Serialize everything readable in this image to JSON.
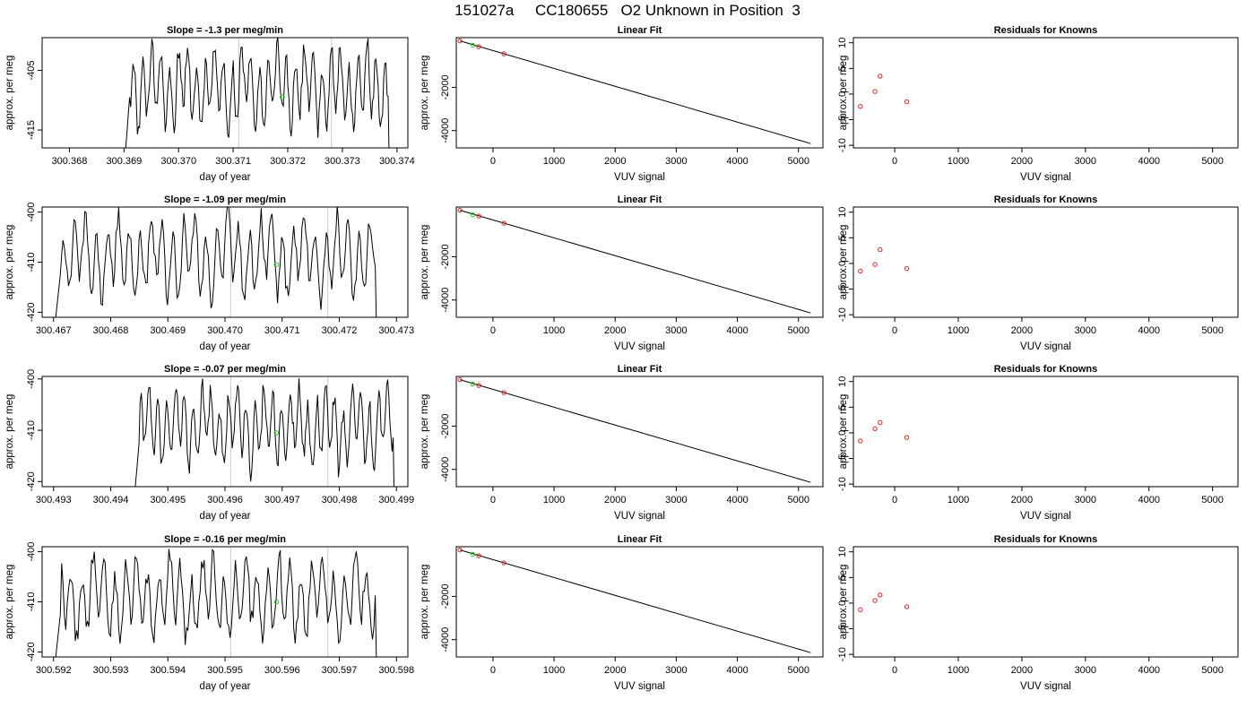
{
  "page_title": "151027a     CC180655   O2 Unknown in Position  3",
  "colors": {
    "trace": "#000000",
    "fit_line": "#000000",
    "knowns": "#dd2222",
    "unknown": "#22cc22",
    "marker_line": "#c8c8c8"
  },
  "chart_data": [
    {
      "row": 1,
      "type": "line",
      "title": "Slope =  -1.3  per meg/min",
      "xlabel": "day of year",
      "ylabel": "approx. per meg",
      "xlim": [
        300.3675,
        300.3742
      ],
      "ylim": [
        -418,
        -399.5
      ],
      "xticks": [
        "300.368",
        "300.369",
        "300.370",
        "300.371",
        "300.372",
        "300.373",
        "300.374"
      ],
      "yticks": [
        -405,
        -415
      ],
      "vlines": [
        300.3711,
        300.3728
      ],
      "trace_start": 300.369,
      "trace_end": 300.3739,
      "unknown_point": {
        "x": 300.3719,
        "y": -409.5
      },
      "fit": {
        "title": "Linear Fit",
        "xlabel": "VUV signal",
        "ylabel": "approx. per meg",
        "xlim": [
          -600,
          5400
        ],
        "ylim": [
          -4800,
          300
        ],
        "xticks": [
          0,
          1000,
          2000,
          3000,
          4000,
          5000
        ],
        "yticks": [
          -2000,
          -4000
        ],
        "line": [
          [
            -540,
            150
          ],
          [
            5200,
            -4600
          ]
        ],
        "knowns": [
          [
            -540,
            150
          ],
          [
            -230,
            -120
          ],
          [
            180,
            -450
          ]
        ],
        "unknown": [
          [
            -330,
            -50
          ]
        ]
      },
      "residuals": {
        "title": "Residuals for Knowns",
        "xlabel": "VUV signal",
        "xlim": [
          -650,
          5400
        ],
        "ylim": [
          -10.5,
          11
        ],
        "xticks": [
          0,
          1000,
          2000,
          3000,
          4000,
          5000
        ],
        "yticks": [
          10,
          5,
          0,
          -5,
          -10
        ],
        "points": [
          [
            -540,
            -2.4
          ],
          [
            -310,
            0.5
          ],
          [
            -230,
            3.5
          ],
          [
            190,
            -1.5
          ]
        ]
      }
    },
    {
      "row": 2,
      "type": "line",
      "title": "Slope =  -1.09  per meg/min",
      "xlabel": "day of year",
      "ylabel": "approx. per meg",
      "xlim": [
        300.4668,
        300.4732
      ],
      "ylim": [
        -421,
        -399
      ],
      "xticks": [
        "300.467",
        "300.468",
        "300.469",
        "300.470",
        "300.471",
        "300.472",
        "300.473"
      ],
      "yticks": [
        -400,
        -410,
        -420
      ],
      "vlines": [
        300.4701,
        300.4718
      ],
      "trace_start": 300.467,
      "trace_end": 300.4727,
      "unknown_point": {
        "x": 300.4709,
        "y": -410.5
      },
      "fit": {
        "title": "Linear Fit",
        "xlabel": "VUV signal",
        "ylabel": "approx. per meg",
        "xlim": [
          -600,
          5400
        ],
        "ylim": [
          -4800,
          300
        ],
        "xticks": [
          0,
          1000,
          2000,
          3000,
          4000,
          5000
        ],
        "yticks": [
          -2000,
          -4000
        ],
        "line": [
          [
            -540,
            150
          ],
          [
            5200,
            -4600
          ]
        ],
        "knowns": [
          [
            -540,
            150
          ],
          [
            -230,
            -120
          ],
          [
            180,
            -450
          ]
        ],
        "unknown": [
          [
            -330,
            -50
          ]
        ]
      },
      "residuals": {
        "title": "Residuals for Knowns",
        "xlabel": "VUV signal",
        "xlim": [
          -650,
          5400
        ],
        "ylim": [
          -10.5,
          11
        ],
        "xticks": [
          0,
          1000,
          2000,
          3000,
          4000,
          5000
        ],
        "yticks": [
          10,
          5,
          0,
          -5,
          -10
        ],
        "points": [
          [
            -540,
            -1.5
          ],
          [
            -310,
            -0.2
          ],
          [
            -230,
            2.7
          ],
          [
            190,
            -1.0
          ]
        ]
      }
    },
    {
      "row": 3,
      "type": "line",
      "title": "Slope =  -0.07  per meg/min",
      "xlabel": "day of year",
      "ylabel": "approx. per meg",
      "xlim": [
        300.4928,
        300.4992
      ],
      "ylim": [
        -421,
        -399.5
      ],
      "xticks": [
        "300.493",
        "300.494",
        "300.495",
        "300.496",
        "300.497",
        "300.498",
        "300.499"
      ],
      "yticks": [
        -400,
        -410,
        -420
      ],
      "vlines": [
        300.4961,
        300.4978
      ],
      "trace_start": 300.4944,
      "trace_end": 300.499,
      "unknown_point": {
        "x": 300.4969,
        "y": -410.5
      },
      "fit": {
        "title": "Linear Fit",
        "xlabel": "VUV signal",
        "ylabel": "approx. per meg",
        "xlim": [
          -600,
          5400
        ],
        "ylim": [
          -4800,
          300
        ],
        "xticks": [
          0,
          1000,
          2000,
          3000,
          4000,
          5000
        ],
        "yticks": [
          -2000,
          -4000
        ],
        "line": [
          [
            -540,
            150
          ],
          [
            5200,
            -4600
          ]
        ],
        "knowns": [
          [
            -540,
            150
          ],
          [
            -230,
            -120
          ],
          [
            180,
            -450
          ]
        ],
        "unknown": [
          [
            -330,
            -50
          ]
        ]
      },
      "residuals": {
        "title": "Residuals for Knowns",
        "xlabel": "VUV signal",
        "xlim": [
          -650,
          5400
        ],
        "ylim": [
          -10.5,
          11
        ],
        "xticks": [
          0,
          1000,
          2000,
          3000,
          4000,
          5000
        ],
        "yticks": [
          10,
          5,
          0,
          -5,
          -10
        ],
        "points": [
          [
            -540,
            -1.6
          ],
          [
            -310,
            0.8
          ],
          [
            -230,
            2.0
          ],
          [
            190,
            -0.9
          ]
        ]
      }
    },
    {
      "row": 4,
      "type": "line",
      "title": "Slope =  -0.16  per meg/min",
      "xlabel": "day of year",
      "ylabel": "approx. per meg",
      "xlim": [
        300.5918,
        300.5982
      ],
      "ylim": [
        -421,
        -399
      ],
      "xticks": [
        "300.592",
        "300.593",
        "300.594",
        "300.595",
        "300.596",
        "300.597",
        "300.598"
      ],
      "yticks": [
        -400,
        -410,
        -420
      ],
      "vlines": [
        300.5951,
        300.5968
      ],
      "trace_start": 300.592,
      "trace_end": 300.5977,
      "unknown_point": {
        "x": 300.5959,
        "y": -410
      },
      "fit": {
        "title": "Linear Fit",
        "xlabel": "VUV signal",
        "ylabel": "approx. per meg",
        "xlim": [
          -600,
          5400
        ],
        "ylim": [
          -4800,
          300
        ],
        "xticks": [
          0,
          1000,
          2000,
          3000,
          4000,
          5000
        ],
        "yticks": [
          -2000,
          -4000
        ],
        "line": [
          [
            -540,
            150
          ],
          [
            5200,
            -4600
          ]
        ],
        "knowns": [
          [
            -540,
            150
          ],
          [
            -230,
            -120
          ],
          [
            180,
            -450
          ]
        ],
        "unknown": [
          [
            -330,
            -50
          ]
        ]
      },
      "residuals": {
        "title": "Residuals for Knowns",
        "xlabel": "VUV signal",
        "xlim": [
          -650,
          5400
        ],
        "ylim": [
          -10.5,
          11
        ],
        "xticks": [
          0,
          1000,
          2000,
          3000,
          4000,
          5000
        ],
        "yticks": [
          10,
          5,
          0,
          -5,
          -10
        ],
        "points": [
          [
            -540,
            -1.3
          ],
          [
            -310,
            0.5
          ],
          [
            -230,
            1.6
          ],
          [
            190,
            -0.7
          ]
        ]
      }
    }
  ]
}
